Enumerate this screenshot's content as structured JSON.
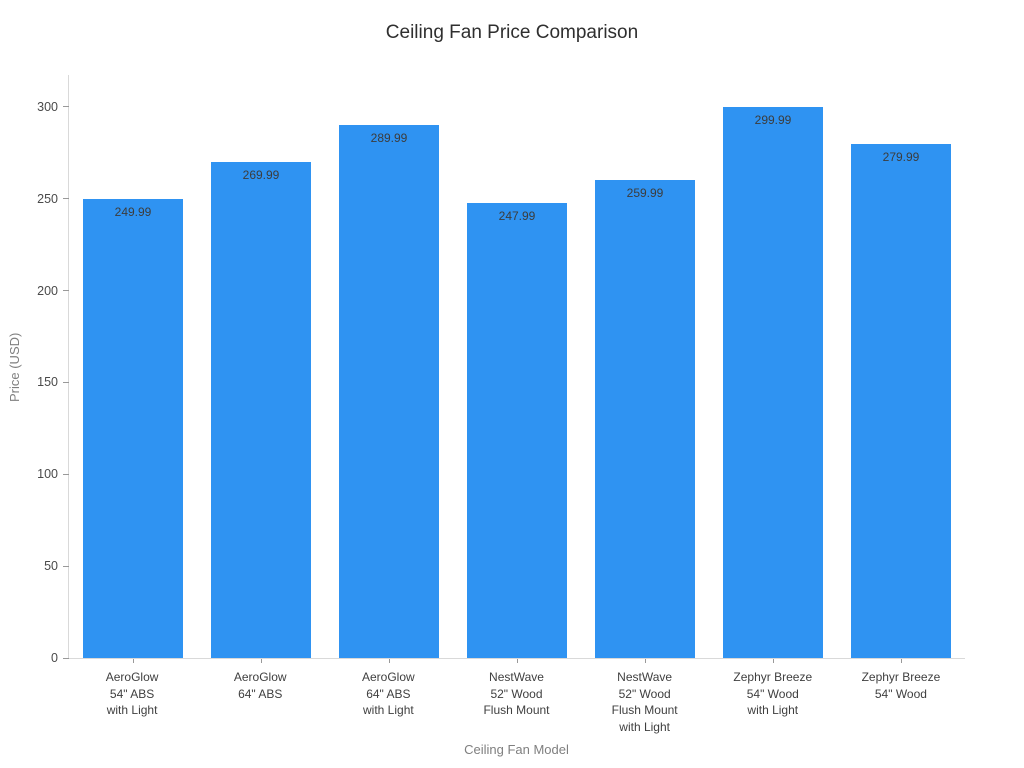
{
  "chart_data": {
    "type": "bar",
    "title": "Ceiling Fan Price Comparison",
    "xlabel": "Ceiling Fan Model",
    "ylabel": "Price (USD)",
    "categories": [
      "AeroGlow\n54\" ABS\nwith Light",
      "AeroGlow\n64\" ABS",
      "AeroGlow\n64\" ABS\nwith Light",
      "NestWave\n52\" Wood\nFlush Mount",
      "NestWave\n52\" Wood\nFlush Mount\nwith Light",
      "Zephyr Breeze\n54\" Wood\nwith Light",
      "Zephyr Breeze\n54\" Wood"
    ],
    "values": [
      249.99,
      269.99,
      289.99,
      247.99,
      259.99,
      299.99,
      279.99
    ],
    "value_labels": [
      "249.99",
      "269.99",
      "289.99",
      "247.99",
      "259.99",
      "299.99",
      "279.99"
    ],
    "yticks": [
      0,
      50,
      100,
      150,
      200,
      250,
      300
    ],
    "ylim": [
      0,
      317.4
    ],
    "grid": false,
    "legend": false,
    "colors": {
      "bar": "#2f93f2",
      "axis_line": "#d9d9d9",
      "tick_mark": "#999999",
      "tick_label": "#4a4a4a",
      "axis_title": "#7f7f7f",
      "title": "#2f2f2f",
      "value_label": "#3c3c3c",
      "background": "#ffffff"
    }
  }
}
